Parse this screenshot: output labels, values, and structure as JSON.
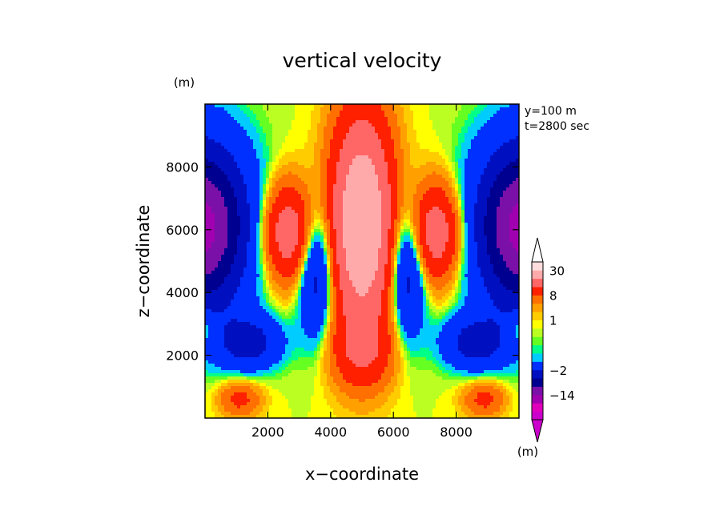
{
  "chart_data": {
    "type": "heatmap",
    "title": "vertical velocity",
    "xlabel": "x−coordinate",
    "ylabel": "z−coordinate",
    "x_unit": "(m)",
    "y_unit": "(m)",
    "annotations": [
      "y=100 m",
      "t=2800 sec"
    ],
    "xlim": [
      0,
      10000
    ],
    "ylim": [
      0,
      10000
    ],
    "x_ticks": [
      2000,
      4000,
      6000,
      8000
    ],
    "y_ticks": [
      2000,
      4000,
      6000,
      8000
    ],
    "x_tick_labels": [
      "2000",
      "4000",
      "6000",
      "8000"
    ],
    "y_tick_labels": [
      "2000",
      "4000",
      "6000",
      "8000"
    ],
    "colorbar": {
      "unit": "(m)",
      "colors": [
        "#cc00cc",
        "#e000bb",
        "#a000b0",
        "#7a10a8",
        "#000090",
        "#0010c0",
        "#0030ff",
        "#00ccff",
        "#00ff88",
        "#66ff22",
        "#bbff22",
        "#ffff00",
        "#ffcc00",
        "#ffa000",
        "#ff7000",
        "#ff2000",
        "#ff6666",
        "#ffaaaa",
        "#ffdddd"
      ],
      "labels": [
        {
          "text": "30",
          "level": 30
        },
        {
          "text": "8",
          "level": 8
        },
        {
          "text": "1",
          "level": 1
        },
        {
          "text": "−2",
          "level": -2
        },
        {
          "text": "−14",
          "level": -14
        }
      ]
    },
    "features": [
      {
        "x": 5000,
        "z": 6500,
        "w": 18
      },
      {
        "x": 5000,
        "z": 2000,
        "w": 8
      },
      {
        "x": 2650,
        "z": 5900,
        "w": 10
      },
      {
        "x": 7350,
        "z": 5900,
        "w": 10
      },
      {
        "x": 200,
        "z": 6100,
        "w": -14
      },
      {
        "x": 9800,
        "z": 6100,
        "w": -14
      },
      {
        "x": 3600,
        "z": 4500,
        "w": -8
      },
      {
        "x": 6400,
        "z": 4500,
        "w": -8
      },
      {
        "x": 1300,
        "z": 2200,
        "w": -8
      },
      {
        "x": 8700,
        "z": 2200,
        "w": -8
      },
      {
        "x": 1100,
        "z": 600,
        "w": 4
      },
      {
        "x": 8900,
        "z": 600,
        "w": 4
      }
    ]
  }
}
